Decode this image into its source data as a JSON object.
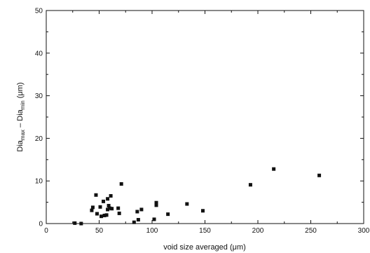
{
  "chart_data": {
    "type": "scatter",
    "title": "",
    "xlabel": "void size averaged (μm)",
    "ylabel": {
      "prefix": "Dia",
      "max_sub": "max",
      "middle": " – Dia",
      "min_sub": "min",
      "unit": " (μm)"
    },
    "xlim": [
      0,
      300
    ],
    "ylim": [
      0,
      50
    ],
    "xticks": [
      "0",
      "50",
      "100",
      "150",
      "200",
      "250",
      "300"
    ],
    "yticks": [
      "0",
      "10",
      "20",
      "30",
      "40",
      "50"
    ],
    "marker": "square",
    "marker_color": "#111111",
    "grid": false,
    "legend": "none",
    "points": [
      {
        "x": 27,
        "y": 0.1
      },
      {
        "x": 33,
        "y": 0.0
      },
      {
        "x": 43,
        "y": 3.1
      },
      {
        "x": 44,
        "y": 3.8
      },
      {
        "x": 47,
        "y": 6.7
      },
      {
        "x": 48,
        "y": 2.3
      },
      {
        "x": 51,
        "y": 3.9
      },
      {
        "x": 52,
        "y": 1.7
      },
      {
        "x": 54,
        "y": 5.2
      },
      {
        "x": 55,
        "y": 1.9
      },
      {
        "x": 57,
        "y": 2.0
      },
      {
        "x": 58,
        "y": 5.8
      },
      {
        "x": 58,
        "y": 3.3
      },
      {
        "x": 59,
        "y": 4.2
      },
      {
        "x": 60,
        "y": 3.6
      },
      {
        "x": 61,
        "y": 6.5
      },
      {
        "x": 62,
        "y": 3.5
      },
      {
        "x": 68,
        "y": 3.6
      },
      {
        "x": 69,
        "y": 2.4
      },
      {
        "x": 71,
        "y": 9.3
      },
      {
        "x": 83,
        "y": 0.3
      },
      {
        "x": 86,
        "y": 2.8
      },
      {
        "x": 87,
        "y": 0.9
      },
      {
        "x": 90,
        "y": 3.3
      },
      {
        "x": 102,
        "y": 1.0
      },
      {
        "x": 104,
        "y": 4.9
      },
      {
        "x": 104,
        "y": 4.3
      },
      {
        "x": 115,
        "y": 2.2
      },
      {
        "x": 133,
        "y": 4.6
      },
      {
        "x": 148,
        "y": 3.0
      },
      {
        "x": 193,
        "y": 9.1
      },
      {
        "x": 215,
        "y": 12.8
      },
      {
        "x": 258,
        "y": 11.3
      }
    ]
  }
}
